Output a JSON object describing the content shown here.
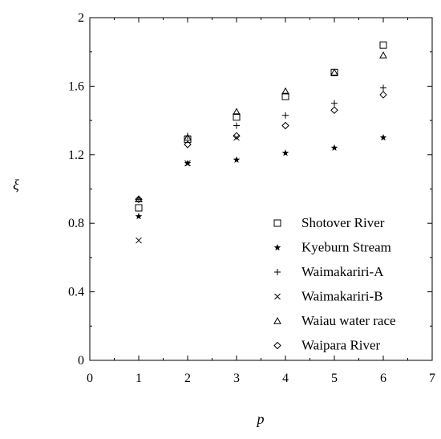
{
  "chart_data": {
    "type": "scatter",
    "title": "",
    "xlabel": "p",
    "ylabel": "ξ",
    "xlim": [
      0,
      7
    ],
    "ylim": [
      0,
      2
    ],
    "xticks": [
      0,
      1,
      2,
      3,
      4,
      5,
      6,
      7
    ],
    "yticks": [
      0,
      0.4,
      0.8,
      1.2,
      1.6,
      2
    ],
    "xtick_labels": [
      "0",
      "1",
      "2",
      "3",
      "4",
      "5",
      "6",
      "7"
    ],
    "ytick_labels": [
      "0",
      "0.4",
      "0.8",
      "1.2",
      "1.6",
      "2"
    ],
    "grid": false,
    "legend_position": "bottom-right",
    "series": [
      {
        "name": "Shotover River",
        "marker": "square",
        "x": [
          1,
          2,
          3,
          4,
          5,
          6
        ],
        "y": [
          0.89,
          1.29,
          1.42,
          1.54,
          1.68,
          1.84
        ]
      },
      {
        "name": "Kyeburn Stream",
        "marker": "star",
        "x": [
          1,
          2,
          3,
          4,
          5,
          6
        ],
        "y": [
          0.84,
          1.15,
          1.17,
          1.21,
          1.24,
          1.3
        ]
      },
      {
        "name": "Waimakariri-A",
        "marker": "plus",
        "x": [
          1,
          2,
          3,
          4,
          5,
          6
        ],
        "y": [
          0.94,
          1.31,
          1.37,
          1.43,
          1.5,
          1.59
        ]
      },
      {
        "name": "Waimakariri-B",
        "marker": "cross",
        "x": [
          1,
          2,
          3,
          4,
          5,
          6
        ],
        "y": [
          0.7,
          1.15,
          1.3,
          null,
          null,
          null
        ]
      },
      {
        "name": "Waiau water race",
        "marker": "triangle",
        "x": [
          1,
          2,
          3,
          4,
          5,
          6
        ],
        "y": [
          0.94,
          1.3,
          1.45,
          1.57,
          1.68,
          1.78
        ]
      },
      {
        "name": "Waipara River",
        "marker": "diamond",
        "x": [
          1,
          2,
          3,
          4,
          5,
          6
        ],
        "y": [
          0.94,
          1.26,
          1.31,
          1.37,
          1.46,
          1.55
        ]
      }
    ]
  }
}
